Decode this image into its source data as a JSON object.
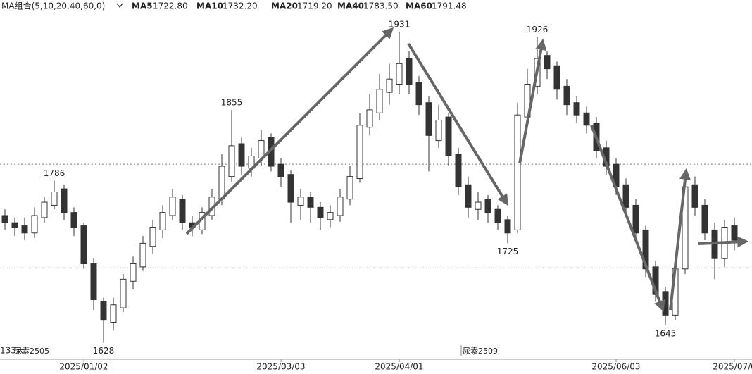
{
  "header": {
    "label": "MA组合(5,10,20,40,60,0)",
    "ma": [
      {
        "name": "MA5",
        "value": "1722.80"
      },
      {
        "name": "MA10",
        "value": "1732.20"
      },
      {
        "name": "MA20",
        "value": "1719.20"
      },
      {
        "name": "MA40",
        "value": "1783.50"
      },
      {
        "name": "MA60",
        "value": "1791.48"
      }
    ]
  },
  "footer": {
    "days": "133天",
    "contracts": [
      "尿素2505",
      "尿素2509"
    ]
  },
  "chart_data": {
    "type": "candlestick",
    "categories": [
      null,
      null,
      null,
      null,
      null,
      null,
      null,
      null,
      "2025/01/02",
      null,
      null,
      null,
      null,
      null,
      null,
      null,
      null,
      null,
      null,
      null,
      null,
      null,
      null,
      null,
      null,
      null,
      null,
      null,
      "2025/03/03",
      null,
      null,
      null,
      null,
      null,
      null,
      null,
      null,
      null,
      null,
      null,
      "2025/04/01",
      null,
      null,
      null,
      null,
      null,
      null,
      null,
      null,
      null,
      null,
      null,
      null,
      null,
      null,
      null,
      null,
      null,
      null,
      null,
      null,
      null,
      "2025/06/03",
      null,
      null,
      null,
      null,
      null,
      null,
      null,
      null,
      null,
      null,
      null,
      "2025/07/0"
    ],
    "ohlc": [
      [
        1752,
        1758,
        1738,
        1745
      ],
      [
        1745,
        1750,
        1732,
        1740
      ],
      [
        1742,
        1750,
        1728,
        1735
      ],
      [
        1735,
        1760,
        1730,
        1752
      ],
      [
        1750,
        1770,
        1745,
        1765
      ],
      [
        1762,
        1786,
        1758,
        1775
      ],
      [
        1778,
        1782,
        1748,
        1755
      ],
      [
        1755,
        1760,
        1732,
        1740
      ],
      [
        1742,
        1745,
        1700,
        1705
      ],
      [
        1705,
        1710,
        1660,
        1670
      ],
      [
        1668,
        1672,
        1628,
        1650
      ],
      [
        1648,
        1672,
        1640,
        1665
      ],
      [
        1662,
        1695,
        1658,
        1690
      ],
      [
        1688,
        1712,
        1680,
        1705
      ],
      [
        1702,
        1732,
        1698,
        1725
      ],
      [
        1722,
        1748,
        1715,
        1740
      ],
      [
        1738,
        1762,
        1730,
        1755
      ],
      [
        1752,
        1778,
        1748,
        1770
      ],
      [
        1768,
        1772,
        1738,
        1745
      ],
      [
        1745,
        1752,
        1732,
        1740
      ],
      [
        1738,
        1760,
        1734,
        1755
      ],
      [
        1752,
        1778,
        1748,
        1770
      ],
      [
        1768,
        1812,
        1762,
        1800
      ],
      [
        1790,
        1855,
        1785,
        1820
      ],
      [
        1822,
        1828,
        1792,
        1800
      ],
      [
        1798,
        1818,
        1790,
        1810
      ],
      [
        1808,
        1835,
        1800,
        1825
      ],
      [
        1828,
        1832,
        1795,
        1800
      ],
      [
        1802,
        1808,
        1780,
        1790
      ],
      [
        1792,
        1796,
        1745,
        1765
      ],
      [
        1762,
        1778,
        1748,
        1770
      ],
      [
        1770,
        1775,
        1745,
        1760
      ],
      [
        1760,
        1765,
        1738,
        1750
      ],
      [
        1748,
        1762,
        1740,
        1755
      ],
      [
        1752,
        1778,
        1746,
        1770
      ],
      [
        1768,
        1800,
        1762,
        1790
      ],
      [
        1788,
        1852,
        1784,
        1840
      ],
      [
        1838,
        1870,
        1830,
        1855
      ],
      [
        1852,
        1890,
        1845,
        1875
      ],
      [
        1872,
        1900,
        1860,
        1885
      ],
      [
        1880,
        1931,
        1870,
        1900
      ],
      [
        1905,
        1912,
        1870,
        1880
      ],
      [
        1882,
        1888,
        1850,
        1860
      ],
      [
        1862,
        1868,
        1795,
        1830
      ],
      [
        1825,
        1860,
        1818,
        1845
      ],
      [
        1848,
        1852,
        1800,
        1810
      ],
      [
        1812,
        1818,
        1772,
        1780
      ],
      [
        1782,
        1790,
        1750,
        1760
      ],
      [
        1758,
        1775,
        1748,
        1765
      ],
      [
        1768,
        1772,
        1745,
        1755
      ],
      [
        1758,
        1762,
        1738,
        1745
      ],
      [
        1748,
        1752,
        1725,
        1735
      ],
      [
        1738,
        1862,
        1735,
        1850
      ],
      [
        1848,
        1895,
        1842,
        1880
      ],
      [
        1878,
        1926,
        1870,
        1905
      ],
      [
        1908,
        1912,
        1885,
        1895
      ],
      [
        1898,
        1902,
        1865,
        1875
      ],
      [
        1878,
        1885,
        1850,
        1860
      ],
      [
        1862,
        1868,
        1842,
        1850
      ],
      [
        1852,
        1858,
        1832,
        1840
      ],
      [
        1842,
        1848,
        1808,
        1815
      ],
      [
        1818,
        1825,
        1792,
        1800
      ],
      [
        1802,
        1808,
        1772,
        1780
      ],
      [
        1782,
        1788,
        1752,
        1760
      ],
      [
        1762,
        1768,
        1728,
        1735
      ],
      [
        1738,
        1742,
        1692,
        1700
      ],
      [
        1702,
        1708,
        1668,
        1675
      ],
      [
        1678,
        1682,
        1645,
        1655
      ],
      [
        1655,
        1712,
        1650,
        1700
      ],
      [
        1700,
        1792,
        1695,
        1780
      ],
      [
        1782,
        1790,
        1752,
        1760
      ],
      [
        1762,
        1768,
        1728,
        1735
      ],
      [
        1738,
        1745,
        1690,
        1710
      ],
      [
        1710,
        1748,
        1702,
        1740
      ],
      [
        1742,
        1750,
        1718,
        1728
      ]
    ],
    "annotations": [
      1786,
      1628,
      1855,
      1931,
      1725,
      1926,
      1645
    ],
    "reference_lines": [
      1802,
      1701
    ],
    "ylim": [
      1612,
      1962
    ],
    "up_color": "#ffffff",
    "down_color": "#333333",
    "stroke": "#333333"
  }
}
